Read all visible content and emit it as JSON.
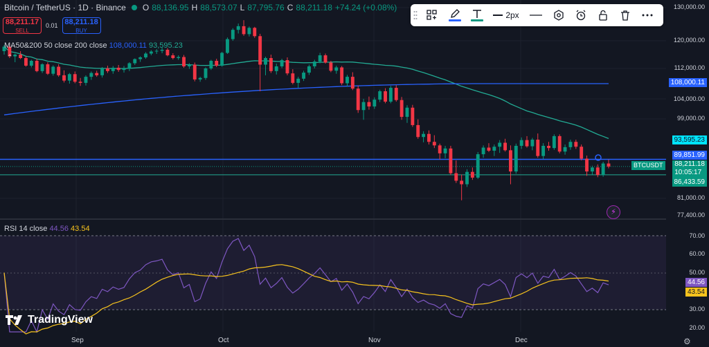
{
  "header": {
    "title": "Bitcoin / TetherUS · 1D · Binance",
    "o_label": "O",
    "o": "88,136.95",
    "h_label": "H",
    "h": "88,573.07",
    "l_label": "L",
    "l": "87,795.76",
    "c_label": "C",
    "c": "88,211.18",
    "change": "+74.24 (+0.08%)"
  },
  "trade": {
    "sell_price": "88,211.17",
    "sell_label": "SELL",
    "spread": "0.01",
    "buy_price": "88,211.18",
    "buy_label": "BUY"
  },
  "ma_legend": {
    "label": "MA50&200 50 close 200 close",
    "ma200": "108,000.11",
    "ma50": "93,595.23"
  },
  "rsi_legend": {
    "label": "RSI 14 close",
    "rsi": "44.56",
    "rsi_ma": "43.54"
  },
  "toolbar": {
    "width_label": "2px"
  },
  "price_axis": {
    "ticks": [
      "130,000.00",
      "120,000.00",
      "112,000.00",
      "104,000.00",
      "99,000.00",
      "81,000.00",
      "77,400.00"
    ],
    "tags": {
      "ma200": "108,000.11",
      "ma50": "93,595.23",
      "line": "89,851.99",
      "last": "88,211.18",
      "countdown": "10:05:17",
      "low": "86,433.59"
    },
    "symbol": "BTCUSDT"
  },
  "rsi_axis": {
    "ticks": [
      "70.00",
      "60.00",
      "50.00",
      "30.00",
      "20.00"
    ],
    "rsi": "44.56",
    "rsi_ma": "43.54"
  },
  "time_axis": [
    "Sep",
    "Oct",
    "Nov",
    "Dec"
  ],
  "brand": "TradingView",
  "colors": {
    "up": "#089981",
    "down": "#f23645",
    "ma200": "#2962ff",
    "ma50": "#22ab94",
    "rsi": "#7e57c2",
    "rsi_ma": "#f7c31d",
    "bg": "#131722"
  },
  "chart_data": {
    "type": "candlestick",
    "symbol": "BTCUSDT",
    "interval": "1D",
    "price_range": [
      77400,
      130000
    ],
    "candles": [
      [
        117000,
        118800,
        116000,
        118300
      ],
      [
        118300,
        119000,
        115000,
        115500
      ],
      [
        115500,
        116300,
        113800,
        116000
      ],
      [
        116000,
        117000,
        114700,
        115000
      ],
      [
        115000,
        115500,
        112500,
        112800
      ],
      [
        112800,
        114500,
        112300,
        114200
      ],
      [
        114200,
        114800,
        111000,
        111300
      ],
      [
        111300,
        113500,
        110800,
        113200
      ],
      [
        113200,
        113800,
        110300,
        110600
      ],
      [
        110600,
        112900,
        110100,
        112500
      ],
      [
        112500,
        113200,
        109800,
        110200
      ],
      [
        110200,
        111500,
        108300,
        108800
      ],
      [
        108800,
        110800,
        108000,
        110500
      ],
      [
        110500,
        111200,
        108100,
        108500
      ],
      [
        108500,
        109500,
        107400,
        108200
      ],
      [
        108200,
        110200,
        107500,
        109800
      ],
      [
        109800,
        111200,
        109000,
        110800
      ],
      [
        110800,
        111400,
        109800,
        110200
      ],
      [
        110200,
        112400,
        109600,
        112000
      ],
      [
        112000,
        112800,
        110800,
        111300
      ],
      [
        111300,
        112700,
        110600,
        112200
      ],
      [
        112200,
        113000,
        111100,
        111600
      ],
      [
        111600,
        112700,
        110900,
        111900
      ],
      [
        111900,
        113800,
        111300,
        113500
      ],
      [
        113500,
        114900,
        113000,
        114700
      ],
      [
        114700,
        115500,
        113900,
        115200
      ],
      [
        115200,
        116700,
        114800,
        116300
      ],
      [
        116300,
        117300,
        115800,
        116900
      ],
      [
        116900,
        117600,
        116200,
        117100
      ],
      [
        117100,
        118000,
        116400,
        117400
      ],
      [
        117400,
        117900,
        115500,
        115800
      ],
      [
        115800,
        116400,
        114600,
        115000
      ],
      [
        115000,
        115800,
        114500,
        115300
      ],
      [
        115300,
        115900,
        112200,
        112600
      ],
      [
        112600,
        113500,
        111900,
        113100
      ],
      [
        113100,
        113700,
        108600,
        109100
      ],
      [
        109100,
        109800,
        108500,
        109500
      ],
      [
        109500,
        112300,
        109000,
        112000
      ],
      [
        112000,
        114500,
        111600,
        114200
      ],
      [
        114200,
        114800,
        112400,
        112800
      ],
      [
        112800,
        116800,
        112500,
        116500
      ],
      [
        116500,
        121000,
        116200,
        120500
      ],
      [
        120500,
        123800,
        120000,
        123300
      ],
      [
        123300,
        125200,
        122200,
        124400
      ],
      [
        124400,
        126200,
        121500,
        122000
      ],
      [
        122000,
        124300,
        121300,
        123900
      ],
      [
        123900,
        124200,
        120900,
        121400
      ],
      [
        121400,
        122100,
        106000,
        113100
      ],
      [
        113100,
        115400,
        110200,
        115000
      ],
      [
        115000,
        116000,
        110800,
        111300
      ],
      [
        111300,
        113400,
        110400,
        112600
      ],
      [
        112600,
        114800,
        112100,
        114400
      ],
      [
        114400,
        115200,
        110200,
        110700
      ],
      [
        110700,
        111800,
        107800,
        108200
      ],
      [
        108200,
        109800,
        106900,
        109300
      ],
      [
        109300,
        111400,
        108700,
        110900
      ],
      [
        110900,
        113100,
        110300,
        112600
      ],
      [
        112600,
        114500,
        112000,
        114000
      ],
      [
        114000,
        116500,
        113500,
        115800
      ],
      [
        115800,
        116300,
        113400,
        113700
      ],
      [
        113700,
        114200,
        111000,
        111400
      ],
      [
        111400,
        112800,
        110600,
        112300
      ],
      [
        112300,
        112700,
        107600,
        108100
      ],
      [
        108100,
        110300,
        107200,
        109800
      ],
      [
        109800,
        111000,
        106300,
        106700
      ],
      [
        106700,
        107500,
        100500,
        101200
      ],
      [
        101200,
        104000,
        98800,
        103200
      ],
      [
        103200,
        104600,
        101300,
        102100
      ],
      [
        102100,
        104400,
        101500,
        103800
      ],
      [
        103800,
        106400,
        103200,
        106000
      ],
      [
        106000,
        106800,
        102900,
        103300
      ],
      [
        103300,
        107400,
        102900,
        106900
      ],
      [
        106900,
        107600,
        103300,
        103700
      ],
      [
        103700,
        104500,
        98800,
        99500
      ],
      [
        99500,
        102400,
        98100,
        101800
      ],
      [
        101800,
        102500,
        97200,
        97600
      ],
      [
        97600,
        98900,
        94500,
        94900
      ],
      [
        94900,
        96200,
        93700,
        95600
      ],
      [
        95600,
        96400,
        93200,
        93800
      ],
      [
        93800,
        95300,
        92400,
        93000
      ],
      [
        93000,
        93400,
        89800,
        91200
      ],
      [
        91200,
        92900,
        90100,
        92300
      ],
      [
        92300,
        92900,
        86300,
        86700
      ],
      [
        86700,
        89600,
        84500,
        85000
      ],
      [
        85000,
        86400,
        80600,
        84200
      ],
      [
        84200,
        87600,
        83600,
        87000
      ],
      [
        87000,
        88000,
        85200,
        85700
      ],
      [
        85700,
        91500,
        85400,
        91000
      ],
      [
        91000,
        93000,
        90200,
        92500
      ],
      [
        92500,
        93500,
        91500,
        91800
      ],
      [
        91800,
        93200,
        90600,
        92700
      ],
      [
        92700,
        94200,
        91300,
        93600
      ],
      [
        93600,
        94500,
        91600,
        91900
      ],
      [
        91900,
        93000,
        84200,
        87100
      ],
      [
        87100,
        93400,
        86600,
        92900
      ],
      [
        92900,
        94800,
        92200,
        94200
      ],
      [
        94200,
        95100,
        92500,
        92800
      ],
      [
        92800,
        94700,
        91900,
        94300
      ],
      [
        94300,
        95700,
        90200,
        90600
      ],
      [
        90600,
        93500,
        89900,
        92900
      ],
      [
        92900,
        93800,
        91800,
        92400
      ],
      [
        92400,
        95500,
        92000,
        95100
      ],
      [
        95100,
        95500,
        91200,
        91600
      ],
      [
        91600,
        93200,
        90900,
        92600
      ],
      [
        92600,
        94300,
        92000,
        93800
      ],
      [
        93800,
        94300,
        92200,
        92700
      ],
      [
        92700,
        93200,
        89600,
        90000
      ],
      [
        90000,
        90700,
        86100,
        87100
      ],
      [
        87100,
        88400,
        86400,
        88000
      ],
      [
        88000,
        88700,
        85800,
        86300
      ],
      [
        86300,
        89300,
        85900,
        88900
      ],
      [
        88900,
        89800,
        87800,
        88211
      ]
    ],
    "ma200_series_range": [
      100000,
      108000.11
    ],
    "ma50_last": 93595.23,
    "horizontal_line": 89851.99,
    "last_price": 88211.18,
    "rsi": {
      "period": 14,
      "last": 44.56,
      "ma_last": 43.54,
      "levels": [
        70,
        50,
        30
      ],
      "range": [
        20,
        72
      ]
    }
  }
}
